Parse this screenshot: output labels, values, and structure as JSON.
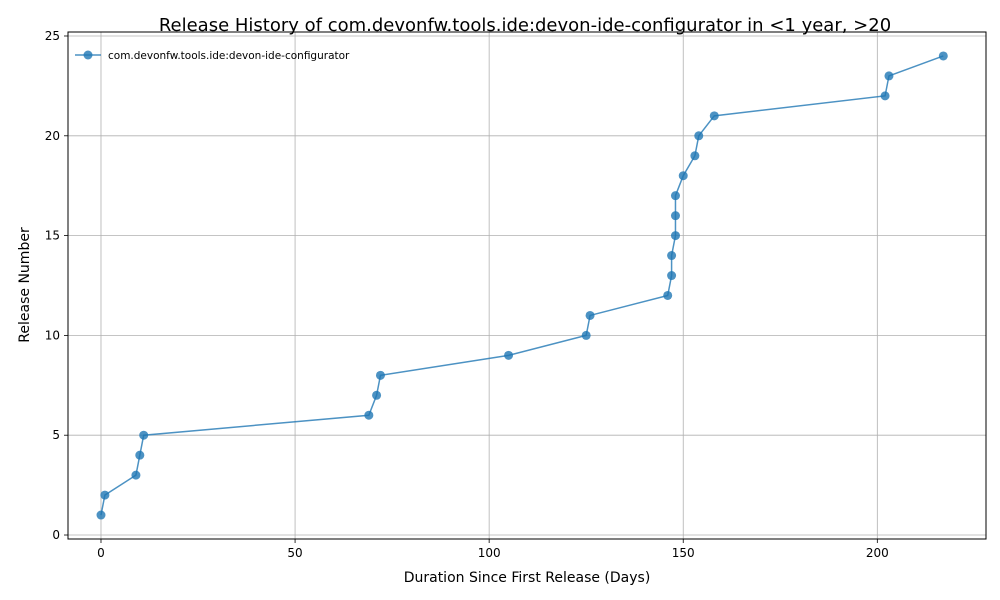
{
  "chart_data": {
    "type": "line",
    "title": "Release History of com.devonfw.tools.ide:devon-ide-configurator in <1 year, >20",
    "xlabel": "Duration Since First Release (Days)",
    "ylabel": "Release Number",
    "xlim": [
      -8.5,
      228
    ],
    "ylim": [
      -0.2,
      25.2
    ],
    "xticks": [
      0,
      50,
      100,
      150,
      200
    ],
    "yticks": [
      0,
      5,
      10,
      15,
      20,
      25
    ],
    "grid": true,
    "legend_position": "top-left",
    "color": "#1f77b4",
    "series": [
      {
        "name": "com.devonfw.tools.ide:devon-ide-configurator",
        "x": [
          0,
          1,
          9,
          10,
          11,
          69,
          71,
          72,
          105,
          125,
          126,
          146,
          147,
          147,
          148,
          148,
          148,
          150,
          153,
          154,
          158,
          202,
          203,
          217
        ],
        "y": [
          1,
          2,
          3,
          4,
          5,
          6,
          7,
          8,
          9,
          10,
          11,
          12,
          13,
          14,
          15,
          16,
          17,
          18,
          19,
          20,
          21,
          22,
          23,
          24
        ]
      }
    ]
  }
}
